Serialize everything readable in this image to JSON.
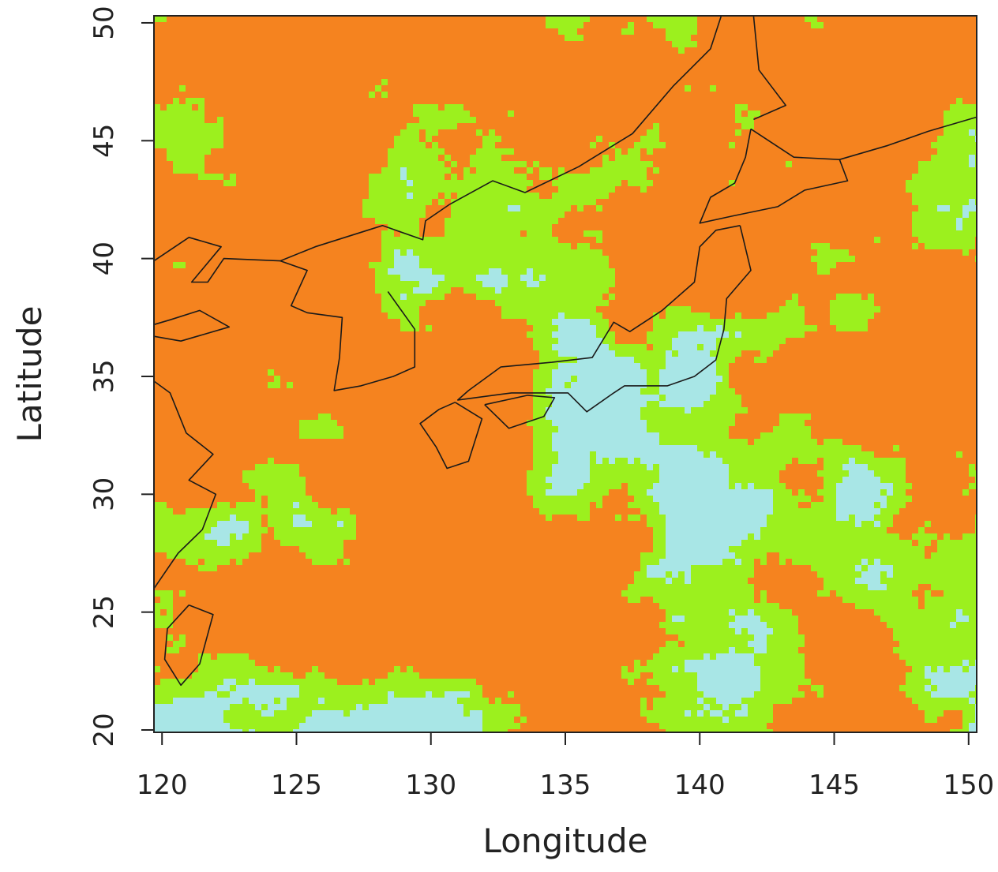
{
  "chart_data": {
    "type": "raster",
    "xlabel": "Longitude",
    "ylabel": "Latitude",
    "xlim": [
      119.7,
      150.3
    ],
    "ylim": [
      19.9,
      50.3
    ],
    "xticks": [
      120,
      125,
      130,
      135,
      140,
      145,
      150
    ],
    "yticks": [
      20,
      25,
      30,
      35,
      40,
      45,
      50
    ],
    "colors": [
      "#f5831f",
      "#9cf01e",
      "#a8e6e6"
    ]
  }
}
